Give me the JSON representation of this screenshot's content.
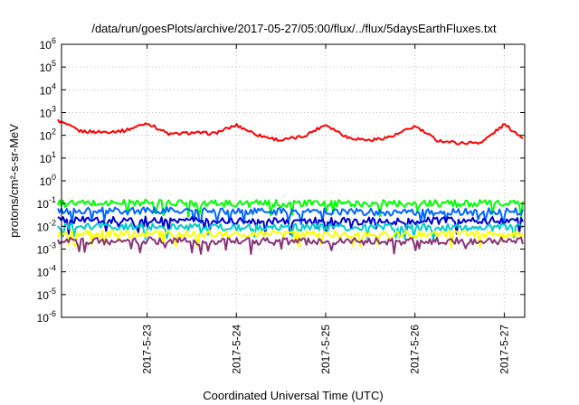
{
  "chart_data": {
    "type": "line",
    "title": "/data/run/goesPlots/archive/2017-05-27/05:00/flux/../flux/5daysEarthFluxes.txt",
    "xlabel": "Coordinated Universal Time (UTC)",
    "ylabel": "protons/cm²-s-sr-MeV",
    "yscale": "log",
    "ylim": [
      1e-06,
      1000000.0
    ],
    "xlim_days": [
      2017.0522,
      2017.0527
    ],
    "x_ticks": [
      "2017-5-23",
      "2017-5-24",
      "2017-5-25",
      "2017-5-26",
      "2017-5-27"
    ],
    "y_ticks": [
      {
        "base": "10",
        "exp": "6"
      },
      {
        "base": "10",
        "exp": "5"
      },
      {
        "base": "10",
        "exp": "4"
      },
      {
        "base": "10",
        "exp": "3"
      },
      {
        "base": "10",
        "exp": "2"
      },
      {
        "base": "10",
        "exp": "1"
      },
      {
        "base": "10",
        "exp": "0"
      },
      {
        "base": "10",
        "exp": "-1"
      },
      {
        "base": "10",
        "exp": "-2"
      },
      {
        "base": "10",
        "exp": "-3"
      },
      {
        "base": "10",
        "exp": "-4"
      },
      {
        "base": "10",
        "exp": "-5"
      },
      {
        "base": "10",
        "exp": "-6"
      }
    ],
    "grid": true,
    "legend": "none",
    "series": [
      {
        "color": "#ff0000",
        "x": [
          "2017-05-22 00:00",
          "2017-05-22 06:00",
          "2017-05-22 12:00",
          "2017-05-22 18:00",
          "2017-05-23 00:00",
          "2017-05-23 06:00",
          "2017-05-23 12:00",
          "2017-05-23 18:00",
          "2017-05-24 00:00",
          "2017-05-24 06:00",
          "2017-05-24 12:00",
          "2017-05-24 18:00",
          "2017-05-25 00:00",
          "2017-05-25 06:00",
          "2017-05-25 12:00",
          "2017-05-25 18:00",
          "2017-05-26 00:00",
          "2017-05-26 06:00",
          "2017-05-26 12:00",
          "2017-05-26 18:00",
          "2017-05-27 00:00",
          "2017-05-27 05:00"
        ],
        "values": [
          450,
          150,
          140,
          160,
          350,
          110,
          130,
          120,
          280,
          100,
          60,
          90,
          300,
          80,
          60,
          90,
          250,
          60,
          45,
          50,
          300,
          80
        ]
      },
      {
        "color": "#00ff00",
        "x": [
          "2017-05-22 00:00",
          "2017-05-23 00:00",
          "2017-05-24 00:00",
          "2017-05-25 00:00",
          "2017-05-26 00:00",
          "2017-05-27 00:00",
          "2017-05-27 05:00"
        ],
        "values": [
          0.1,
          0.11,
          0.1,
          0.1,
          0.1,
          0.1,
          0.1
        ]
      },
      {
        "color": "#0066ff",
        "x": [
          "2017-05-22 00:00",
          "2017-05-23 00:00",
          "2017-05-24 00:00",
          "2017-05-25 00:00",
          "2017-05-26 00:00",
          "2017-05-27 00:00",
          "2017-05-27 05:00"
        ],
        "values": [
          0.045,
          0.05,
          0.045,
          0.045,
          0.04,
          0.045,
          0.045
        ]
      },
      {
        "color": "#0000cc",
        "x": [
          "2017-05-22 00:00",
          "2017-05-23 00:00",
          "2017-05-24 00:00",
          "2017-05-25 00:00",
          "2017-05-26 00:00",
          "2017-05-27 00:00",
          "2017-05-27 05:00"
        ],
        "values": [
          0.018,
          0.02,
          0.018,
          0.017,
          0.017,
          0.018,
          0.018
        ]
      },
      {
        "color": "#00cccc",
        "x": [
          "2017-05-22 00:00",
          "2017-05-23 00:00",
          "2017-05-24 00:00",
          "2017-05-25 00:00",
          "2017-05-26 00:00",
          "2017-05-27 00:00",
          "2017-05-27 05:00"
        ],
        "values": [
          0.009,
          0.01,
          0.009,
          0.009,
          0.009,
          0.009,
          0.009
        ]
      },
      {
        "color": "#ffff00",
        "x": [
          "2017-05-22 00:00",
          "2017-05-23 00:00",
          "2017-05-24 00:00",
          "2017-05-25 00:00",
          "2017-05-26 00:00",
          "2017-05-27 00:00",
          "2017-05-27 05:00"
        ],
        "values": [
          0.0045,
          0.0045,
          0.0045,
          0.0045,
          0.0045,
          0.0045,
          0.0045
        ]
      },
      {
        "color": "#883377",
        "x": [
          "2017-05-22 00:00",
          "2017-05-23 00:00",
          "2017-05-24 00:00",
          "2017-05-25 00:00",
          "2017-05-26 00:00",
          "2017-05-27 00:00",
          "2017-05-27 05:00"
        ],
        "values": [
          0.0022,
          0.0023,
          0.0022,
          0.0021,
          0.0022,
          0.0023,
          0.0022
        ]
      }
    ]
  }
}
